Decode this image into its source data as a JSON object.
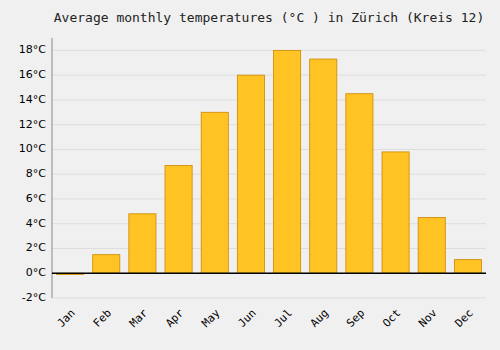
{
  "chart_data": {
    "type": "bar",
    "title": "Average monthly temperatures (°C ) in Zürich (Kreis 12)",
    "categories": [
      "Jan",
      "Feb",
      "Mar",
      "Apr",
      "May",
      "Jun",
      "Jul",
      "Aug",
      "Sep",
      "Oct",
      "Nov",
      "Dec"
    ],
    "values": [
      -0.1,
      1.5,
      4.8,
      8.7,
      13.0,
      16.0,
      18.0,
      17.3,
      14.5,
      9.8,
      4.5,
      1.1
    ],
    "color": "#FFC324",
    "ylim": [
      -2,
      19
    ],
    "yticks": [
      {
        "value": -2,
        "label": "-2°C"
      },
      {
        "value": 0,
        "label": "0°C"
      },
      {
        "value": 2,
        "label": "2°C"
      },
      {
        "value": 4,
        "label": "4°C"
      },
      {
        "value": 6,
        "label": "6°C"
      },
      {
        "value": 8,
        "label": "8°C"
      },
      {
        "value": 10,
        "label": "10°C"
      },
      {
        "value": 12,
        "label": "12°C"
      },
      {
        "value": 14,
        "label": "14°C"
      },
      {
        "value": 16,
        "label": "16°C"
      },
      {
        "value": 18,
        "label": "18°C"
      }
    ],
    "grid": true
  }
}
